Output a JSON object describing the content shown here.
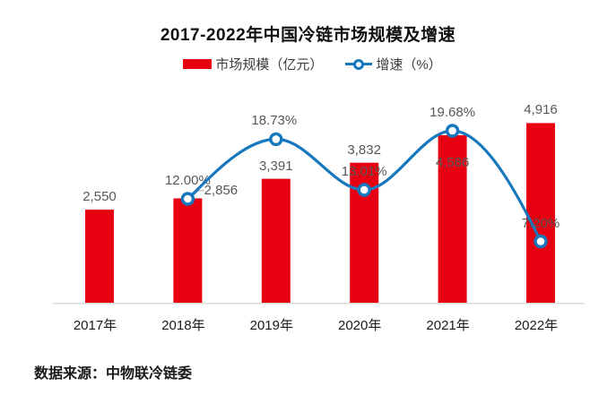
{
  "source": {
    "text": "数据来源：中物联冷链委"
  },
  "colors": {
    "bar": "#E60012",
    "line": "#1778BE",
    "value_label": "#595757",
    "axis_text": "#1A1A1A",
    "axis_line": "#D9D9D9",
    "marker_fill": "#FFFFFF",
    "leader_line": "#A6A6A6"
  },
  "chart_data": {
    "type": "combo-bar-line",
    "title": "2017-2022年中国冷链市场规模及增速",
    "categories": [
      "2017年",
      "2018年",
      "2019年",
      "2020年",
      "2021年",
      "2022年"
    ],
    "series": [
      {
        "name": "市场规模（亿元）",
        "type": "bar",
        "color": "#E60012",
        "values": [
          2550,
          2856,
          3391,
          3832,
          4586,
          4916
        ],
        "value_labels": [
          "2,550",
          "2,856",
          "3,391",
          "3,832",
          "4,586",
          "4,916"
        ]
      },
      {
        "name": "增速（%）",
        "type": "line",
        "color": "#1778BE",
        "values": [
          null,
          12.0,
          18.73,
          13.01,
          19.68,
          7.2
        ],
        "value_labels": [
          null,
          "12.00%",
          "18.73%",
          "13.01%",
          "19.68%",
          "7.20%"
        ]
      }
    ],
    "xlabel": "",
    "ylabel": "",
    "y_axis_visible": false,
    "grid": false,
    "legend_position": "top",
    "bar_axis_min": 0
  }
}
